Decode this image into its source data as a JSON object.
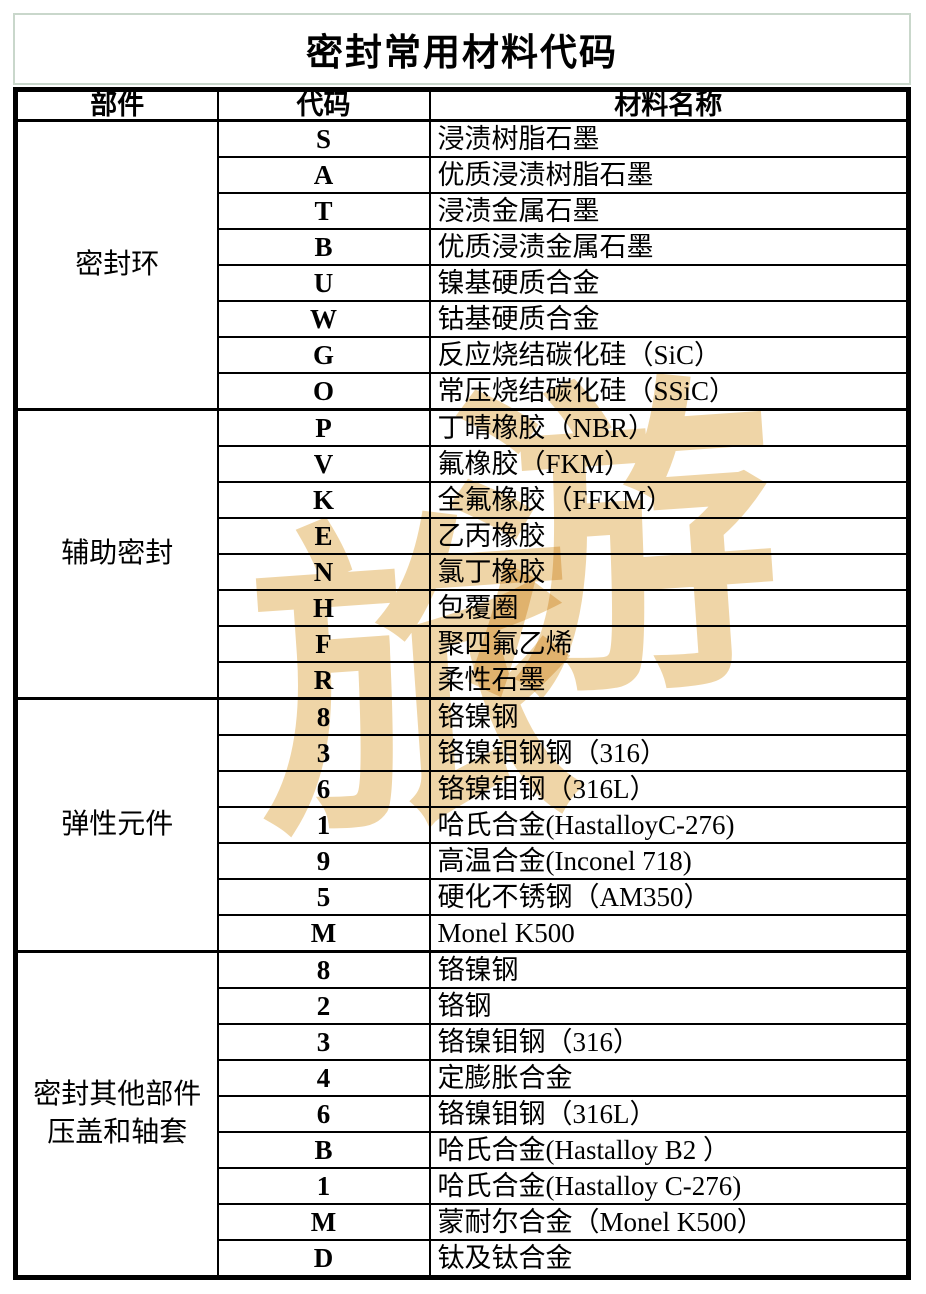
{
  "page": {
    "title": "密封常用材料代码"
  },
  "colors": {
    "title_border": "#c9d7cb",
    "table_border": "#000000",
    "watermark": "#eed2a0",
    "background": "#ffffff"
  },
  "watermark": {
    "chars": [
      "旅",
      "游"
    ]
  },
  "table": {
    "headers": {
      "component": "部件",
      "code": "代码",
      "material": "材料名称"
    },
    "groups": [
      {
        "component": "密封环",
        "rows": [
          {
            "code": "S",
            "material": "浸渍树脂石墨"
          },
          {
            "code": "A",
            "material": "优质浸渍树脂石墨"
          },
          {
            "code": "T",
            "material": "浸渍金属石墨"
          },
          {
            "code": "B",
            "material": "优质浸渍金属石墨"
          },
          {
            "code": "U",
            "material": "镍基硬质合金"
          },
          {
            "code": "W",
            "material": "钴基硬质合金"
          },
          {
            "code": "G",
            "material": "反应烧结碳化硅（SiC）"
          },
          {
            "code": "O",
            "material": "常压烧结碳化硅（SSiC）"
          }
        ]
      },
      {
        "component": "辅助密封",
        "rows": [
          {
            "code": "P",
            "material": "丁晴橡胶（NBR）"
          },
          {
            "code": "V",
            "material": "氟橡胶（FKM）"
          },
          {
            "code": "K",
            "material": "全氟橡胶（FFKM）"
          },
          {
            "code": "E",
            "material": "乙丙橡胶"
          },
          {
            "code": "N",
            "material": "氯丁橡胶"
          },
          {
            "code": "H",
            "material": "包覆圈"
          },
          {
            "code": "F",
            "material": "聚四氟乙烯"
          },
          {
            "code": "R",
            "material": "柔性石墨"
          }
        ]
      },
      {
        "component": "弹性元件",
        "rows": [
          {
            "code": "8",
            "material": "铬镍钢"
          },
          {
            "code": "3",
            "material": "铬镍钼钢钢（316）"
          },
          {
            "code": "6",
            "material": "铬镍钼钢（316L）"
          },
          {
            "code": "1",
            "material": "哈氏合金(HastalloyC-276)"
          },
          {
            "code": "9",
            "material": "高温合金(Inconel 718)"
          },
          {
            "code": "5",
            "material": "硬化不锈钢（AM350）"
          },
          {
            "code": "M",
            "material": "Monel K500"
          }
        ]
      },
      {
        "component": "密封其他部件\n压盖和轴套",
        "rows": [
          {
            "code": "8",
            "material": "铬镍钢"
          },
          {
            "code": "2",
            "material": "铬钢"
          },
          {
            "code": "3",
            "material": "铬镍钼钢（316）"
          },
          {
            "code": "4",
            "material": "定膨胀合金"
          },
          {
            "code": "6",
            "material": "铬镍钼钢（316L）"
          },
          {
            "code": "B",
            "material": "哈氏合金(Hastalloy B2 ）"
          },
          {
            "code": "1",
            "material": "哈氏合金(Hastalloy C-276)"
          },
          {
            "code": "M",
            "material": "蒙耐尔合金（Monel K500）"
          },
          {
            "code": "D",
            "material": "钛及钛合金"
          }
        ]
      }
    ]
  }
}
